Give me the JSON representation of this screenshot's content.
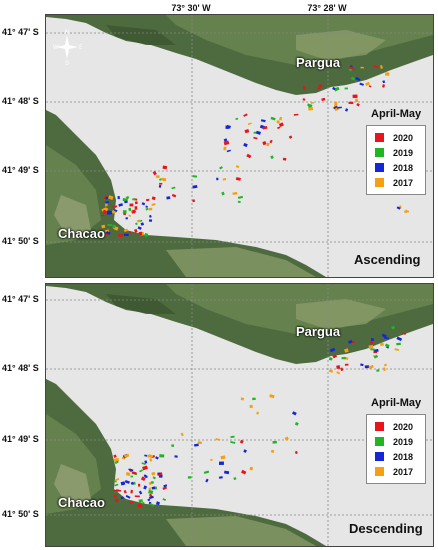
{
  "axes": {
    "longitude_labels": [
      "73° 30' W",
      "73° 28' W"
    ],
    "latitude_labels_top": [
      "41° 47' S",
      "41° 48' S",
      "41° 49' S",
      "41° 50' S"
    ],
    "latitude_labels_bottom": [
      "41° 47' S",
      "41° 48' S",
      "41° 49' S",
      "41° 50' S"
    ]
  },
  "compass": {
    "n": "N",
    "s": "S",
    "e": "E",
    "w": "W",
    "icon": "compass-rose-icon"
  },
  "panels": [
    {
      "mode": "Ascending",
      "places": [
        "Pargua",
        "Chacao"
      ],
      "legend_title": "April-May"
    },
    {
      "mode": "Descending",
      "places": [
        "Pargua",
        "Chacao"
      ],
      "legend_title": "April-May"
    }
  ],
  "legend": [
    {
      "year": "2020",
      "color": "#e8141c"
    },
    {
      "year": "2019",
      "color": "#22b522"
    },
    {
      "year": "2018",
      "color": "#1426d6"
    },
    {
      "year": "2017",
      "color": "#f5a010"
    }
  ],
  "colors": {
    "water": "#e6e6e6",
    "land_dark": "#3f5a35",
    "land_mid": "#5c7a48",
    "land_light": "#8a9a6c",
    "grid_line": "#888888"
  }
}
